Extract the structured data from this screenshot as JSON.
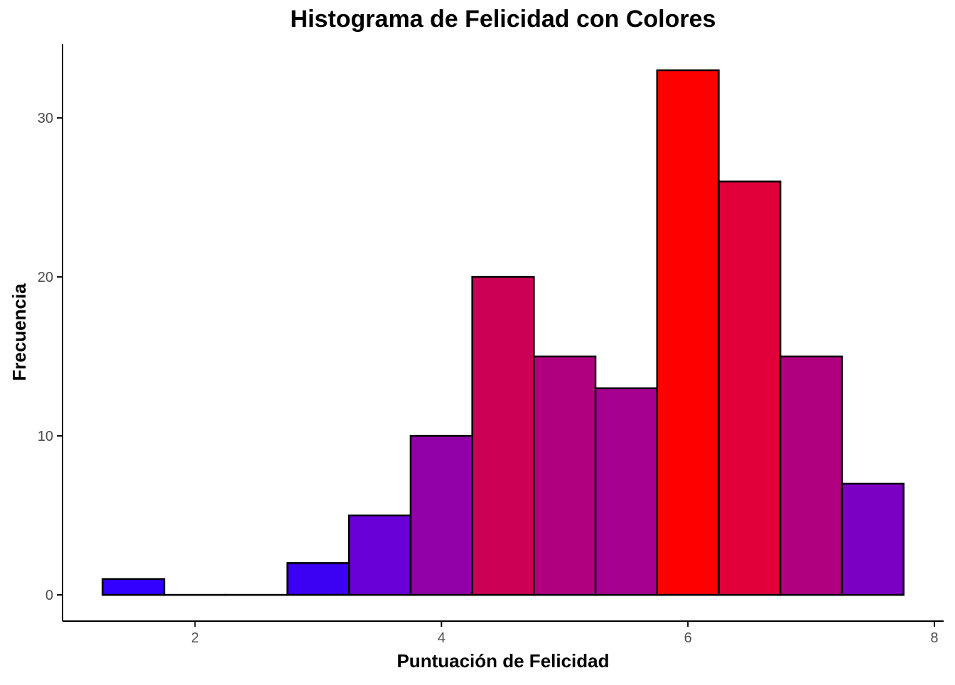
{
  "chart_data": {
    "type": "bar",
    "title": "Histograma de Felicidad con Colores",
    "xlabel": "Puntuación de Felicidad",
    "ylabel": "Frecuencia",
    "bin_width": 0.5,
    "bins": [
      {
        "x0": 1.25,
        "x1": 1.75,
        "count": 1,
        "color": "#3300FF"
      },
      {
        "x0": 1.75,
        "x1": 2.25,
        "count": 0,
        "color": "#2B00FF"
      },
      {
        "x0": 2.25,
        "x1": 2.75,
        "count": 0,
        "color": "#2B00FF"
      },
      {
        "x0": 2.75,
        "x1": 3.25,
        "count": 2,
        "color": "#3C00F2"
      },
      {
        "x0": 3.25,
        "x1": 3.75,
        "count": 5,
        "color": "#6A00D8"
      },
      {
        "x0": 3.75,
        "x1": 4.25,
        "count": 10,
        "color": "#9200A8"
      },
      {
        "x0": 4.25,
        "x1": 4.75,
        "count": 20,
        "color": "#CC0055"
      },
      {
        "x0": 4.75,
        "x1": 5.25,
        "count": 15,
        "color": "#B00080"
      },
      {
        "x0": 5.25,
        "x1": 5.75,
        "count": 13,
        "color": "#A5008F"
      },
      {
        "x0": 5.75,
        "x1": 6.25,
        "count": 33,
        "color": "#FF0000"
      },
      {
        "x0": 6.25,
        "x1": 6.75,
        "count": 26,
        "color": "#E2003A"
      },
      {
        "x0": 6.75,
        "x1": 7.25,
        "count": 15,
        "color": "#B00080"
      },
      {
        "x0": 7.25,
        "x1": 7.75,
        "count": 7,
        "color": "#7C00C3"
      }
    ],
    "xlim": [
      0.925,
      8.075
    ],
    "ylim": [
      -1.65,
      34.65
    ],
    "x_ticks": [
      2,
      4,
      6,
      8
    ],
    "x_tick_labels": [
      "2",
      "4",
      "6",
      "8"
    ],
    "y_ticks": [
      0,
      10,
      20,
      30
    ],
    "y_tick_labels": [
      "0",
      "10",
      "20",
      "30"
    ],
    "grid": false,
    "legend": "none",
    "bar_outline_color": "#000000"
  }
}
